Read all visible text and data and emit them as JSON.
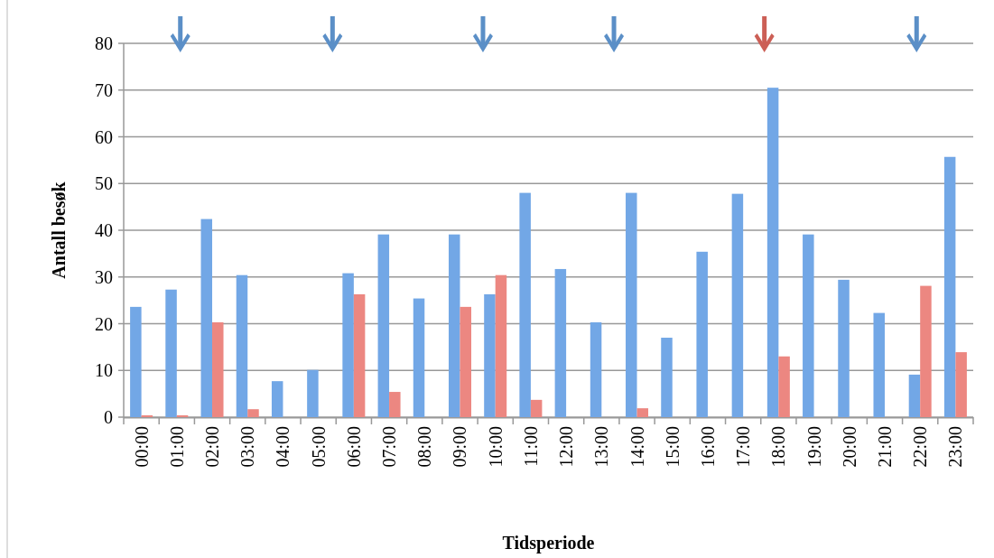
{
  "chart_data": {
    "type": "bar",
    "xlabel": "Tidsperiode",
    "ylabel": "Antall besøk",
    "categories": [
      "00:00",
      "01:00",
      "02:00",
      "03:00",
      "04:00",
      "05:00",
      "06:00",
      "07:00",
      "08:00",
      "09:00",
      "10:00",
      "11:00",
      "12:00",
      "13:00",
      "14:00",
      "15:00",
      "16:00",
      "17:00",
      "18:00",
      "19:00",
      "20:00",
      "21:00",
      "22:00",
      "23:00"
    ],
    "series": [
      {
        "color": "#72a7e6",
        "values": [
          23.6,
          27.3,
          42.4,
          30.4,
          7.7,
          10.1,
          30.8,
          39.1,
          25.4,
          39.1,
          26.3,
          48.0,
          31.7,
          20.3,
          48.0,
          17.0,
          35.4,
          47.8,
          70.5,
          39.1,
          29.4,
          22.3,
          9.1,
          55.7
        ]
      },
      {
        "color": "#ec8781",
        "values": [
          0.4,
          0.4,
          20.3,
          1.7,
          0,
          0,
          26.3,
          5.4,
          0,
          23.6,
          30.4,
          3.7,
          0,
          0,
          1.9,
          0,
          0,
          0,
          13.0,
          0,
          0,
          0,
          28.1,
          13.9
        ]
      }
    ],
    "ylim": [
      0,
      80
    ],
    "yticks": [
      0,
      10,
      20,
      30,
      40,
      50,
      60,
      70,
      80
    ],
    "grid": "y"
  }
}
